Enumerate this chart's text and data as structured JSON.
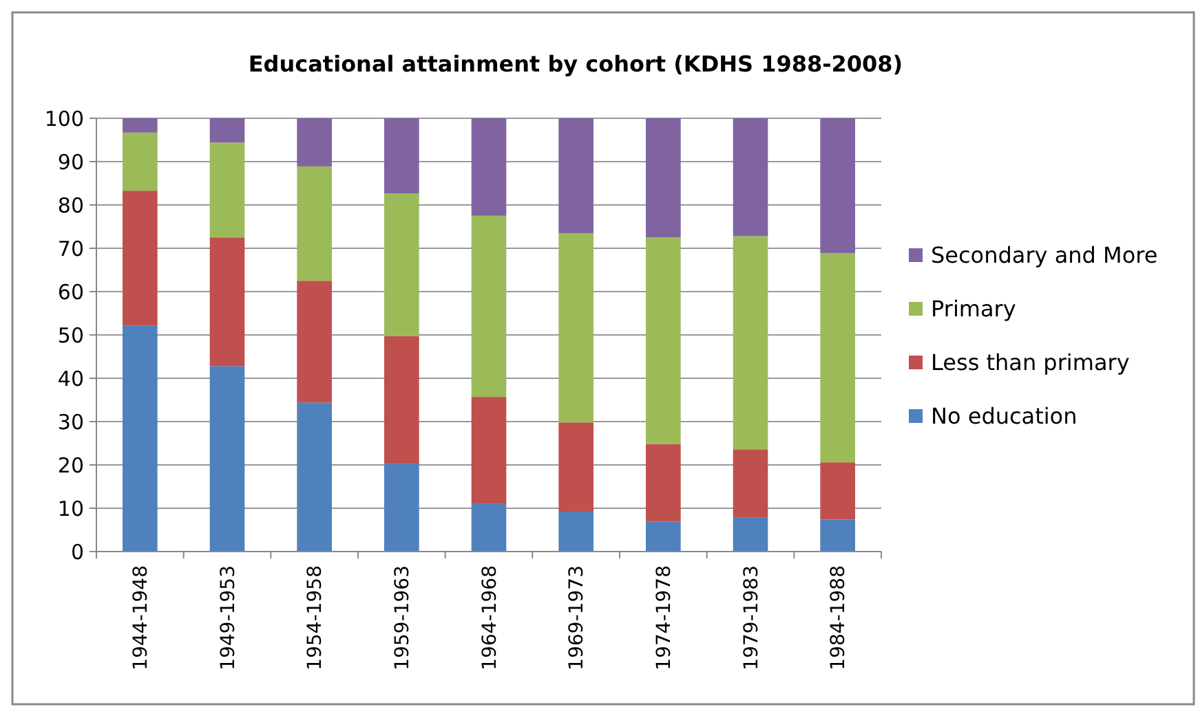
{
  "chart_data": {
    "type": "bar",
    "stacked": true,
    "title": "Educational attainment by cohort (KDHS 1988-2008)",
    "categories": [
      "1944-1948",
      "1949-1953",
      "1954-1958",
      "1959-1963",
      "1964-1968",
      "1969-1973",
      "1974-1978",
      "1979-1983",
      "1984-1988"
    ],
    "series": [
      {
        "name": "No education",
        "color": "#4f81bd",
        "values": [
          52.2,
          42.8,
          34.4,
          20.3,
          11.1,
          9.2,
          6.9,
          7.8,
          7.4
        ]
      },
      {
        "name": "Less than primary",
        "color": "#c0504d",
        "values": [
          31.1,
          29.7,
          28.1,
          29.4,
          24.6,
          20.6,
          17.9,
          15.8,
          13.2
        ]
      },
      {
        "name": "Primary",
        "color": "#9bbb59",
        "values": [
          13.4,
          21.9,
          26.4,
          33.0,
          41.8,
          43.7,
          47.7,
          49.2,
          48.3
        ]
      },
      {
        "name": "Secondary and More",
        "color": "#8064a2",
        "values": [
          3.3,
          5.6,
          11.1,
          17.3,
          22.5,
          26.5,
          27.5,
          27.2,
          31.1
        ]
      }
    ],
    "ylim": [
      0,
      100
    ],
    "yticks": [
      0,
      10,
      20,
      30,
      40,
      50,
      60,
      70,
      80,
      90,
      100
    ],
    "grid": "y",
    "legend": "right"
  }
}
